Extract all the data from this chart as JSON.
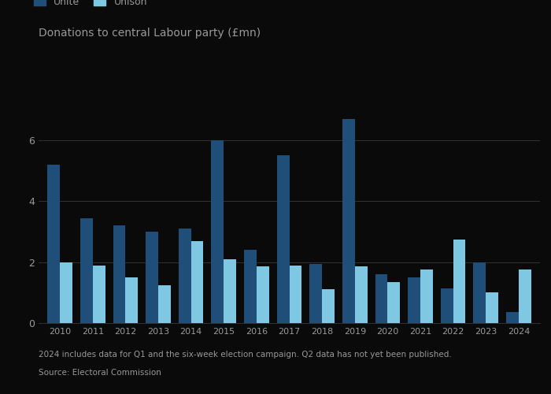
{
  "years": [
    2010,
    2011,
    2012,
    2013,
    2014,
    2015,
    2016,
    2017,
    2018,
    2019,
    2020,
    2021,
    2022,
    2023,
    2024
  ],
  "unite": [
    5.2,
    3.45,
    3.2,
    3.0,
    3.1,
    6.0,
    2.4,
    5.5,
    1.95,
    6.7,
    1.6,
    1.5,
    1.15,
    2.0,
    0.35
  ],
  "unison": [
    2.0,
    1.9,
    1.5,
    1.25,
    2.7,
    2.1,
    1.85,
    1.9,
    1.1,
    1.85,
    1.35,
    1.75,
    2.75,
    1.0,
    1.75
  ],
  "unite_color": "#1f4e79",
  "unison_color": "#7ec8e3",
  "title": "Donations to central Labour party (£mn)",
  "yticks": [
    0,
    2,
    4,
    6
  ],
  "ylim": [
    0,
    7.5
  ],
  "legend_labels": [
    "Unite",
    "Unison"
  ],
  "footnote1": "2024 includes data for Q1 and the six-week election campaign. Q2 data has not yet been published.",
  "footnote2": "Source: Electoral Commission",
  "background_color": "#0a0a0a",
  "text_color": "#999999",
  "grid_color": "#333333",
  "bar_width": 0.38
}
